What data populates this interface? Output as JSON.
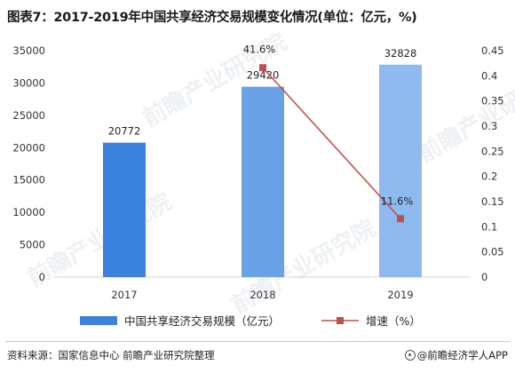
{
  "title": "图表7：2017-2019年中国共享经济交易规模变化情况(单位：亿元，%)",
  "watermark": "前瞻产业研究院",
  "colors": {
    "bar_2017": "#3b82dc",
    "bar_2018": "#6aa2e6",
    "bar_2019": "#8fbaf0",
    "line": "#c0504d",
    "axis_text": "#333333"
  },
  "chart_data": {
    "type": "bar",
    "categories": [
      "2017",
      "2018",
      "2019"
    ],
    "series": [
      {
        "name": "中国共享经济交易规模（亿元）",
        "type": "bar",
        "axis": "left",
        "values": [
          20772,
          29420,
          32828
        ],
        "labels": [
          "20772",
          "29420",
          "32828"
        ]
      },
      {
        "name": "增速（%）",
        "type": "line",
        "axis": "right",
        "values": [
          null,
          0.416,
          0.116
        ],
        "labels": [
          "",
          "41.6%",
          "11.6%"
        ]
      }
    ],
    "y_left": {
      "min": 0,
      "max": 35000,
      "ticks": [
        "0",
        "5000",
        "10000",
        "15000",
        "20000",
        "25000",
        "30000",
        "35000"
      ]
    },
    "y_right": {
      "min": 0,
      "max": 0.45,
      "ticks": [
        "0",
        "0.05",
        "0.1",
        "0.15",
        "0.2",
        "0.25",
        "0.3",
        "0.35",
        "0.4",
        "0.45"
      ]
    },
    "legend_position": "bottom",
    "grid": false
  },
  "footer": {
    "source": "资料来源：国家信息中心 前瞻产业研究院整理",
    "brand": "@前瞻经济学人APP"
  }
}
